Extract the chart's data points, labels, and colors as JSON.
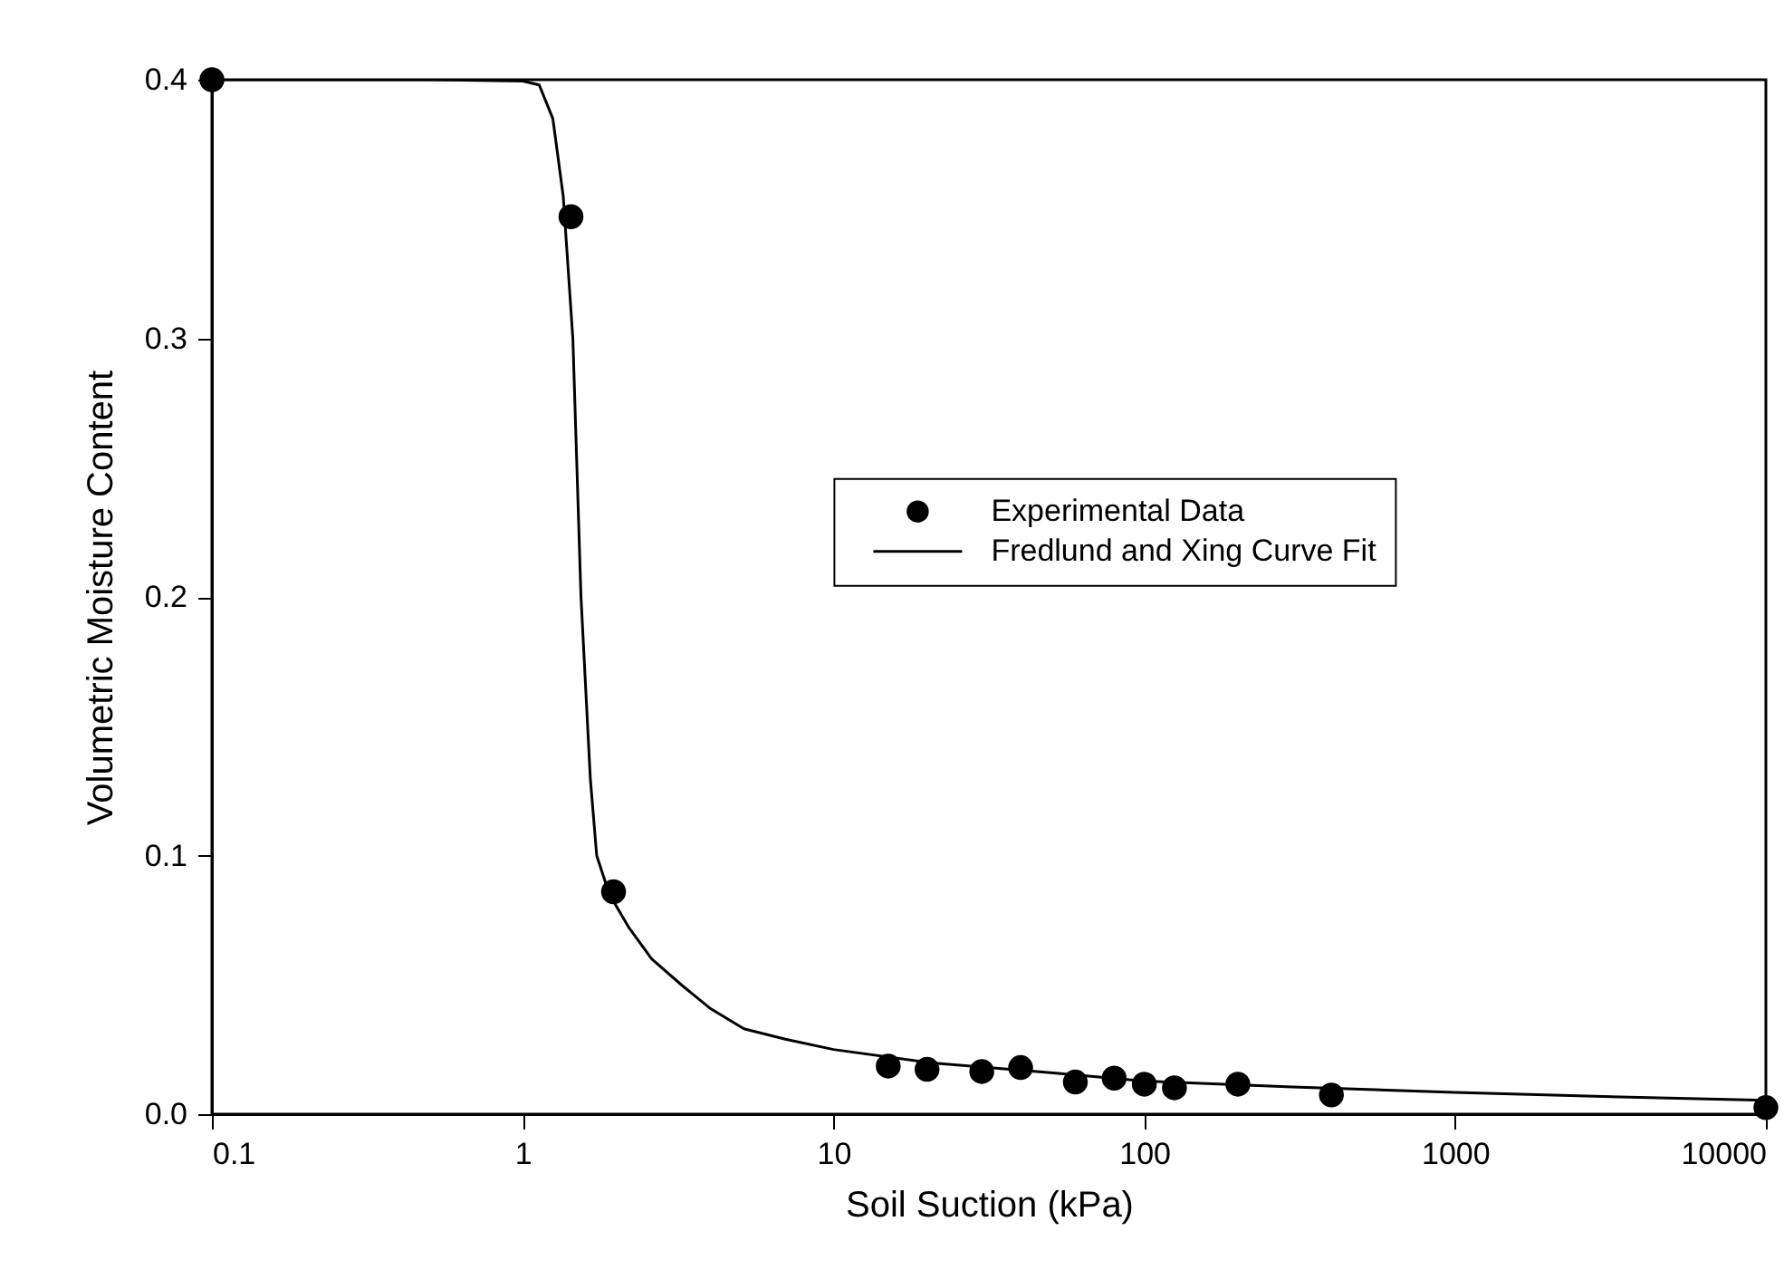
{
  "chart_data": {
    "type": "scatter",
    "xlabel": "Soil Suction (kPa)",
    "ylabel": "Volumetric Moisture Content",
    "log": "x",
    "xlim": [
      0.1,
      10000
    ],
    "xticks": [
      0.1,
      1,
      10,
      100,
      1000,
      10000
    ],
    "ylim": [
      0,
      0.4
    ],
    "yticks": [
      {
        "value": 0,
        "label": "0.0"
      },
      0.1,
      0.2,
      0.3,
      0.4
    ],
    "grid": false,
    "legend": "right",
    "series": [
      {
        "name": "Experimental Data",
        "type": "scatter",
        "color": "#000000",
        "marker": "circle",
        "x": [
          0.1,
          1.43,
          1.96,
          15,
          20,
          30,
          40,
          60,
          80,
          100,
          125,
          200,
          400,
          10000
        ],
        "values": [
          0.4,
          0.347,
          0.086,
          0.0186,
          0.0173,
          0.0165,
          0.018,
          0.0124,
          0.0139,
          0.0116,
          0.0102,
          0.0116,
          0.0074,
          0.0025
        ]
      },
      {
        "name": "Fredlund and Xing Curve Fit",
        "type": "line",
        "color": "#000000",
        "marker": "none",
        "line_style": "solid",
        "x": [
          0.1,
          0.5,
          1.0,
          1.13,
          1.25,
          1.35,
          1.45,
          1.54,
          1.65,
          1.73,
          1.9,
          2.2,
          2.6,
          3.24,
          4,
          5.15,
          7,
          10,
          20,
          50,
          100,
          300,
          1000,
          3000,
          10000
        ],
        "values": [
          0.4,
          0.4,
          0.3995,
          0.398,
          0.385,
          0.355,
          0.3,
          0.2,
          0.13,
          0.1,
          0.085,
          0.072,
          0.06,
          0.05,
          0.041,
          0.033,
          0.029,
          0.025,
          0.02,
          0.016,
          0.0128,
          0.0105,
          0.0084,
          0.0068,
          0.0053
        ]
      }
    ]
  }
}
